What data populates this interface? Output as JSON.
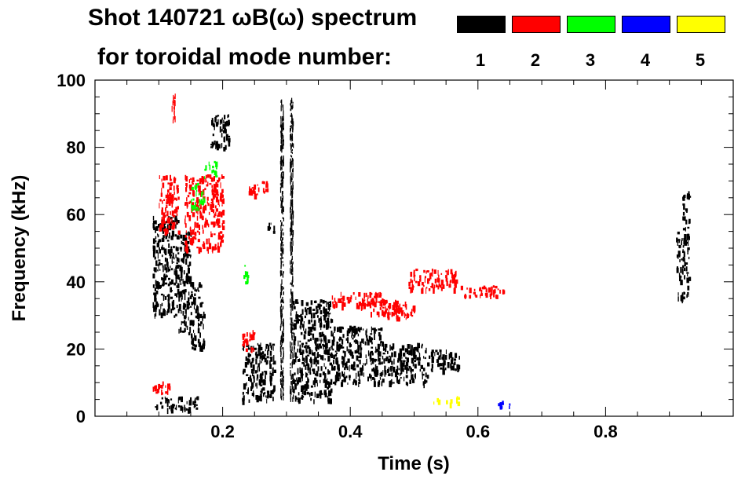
{
  "chart_data": {
    "type": "scatter",
    "title_line1": "Shot 140721 ωB(ω) spectrum",
    "title_line2": "for toroidal mode number:",
    "xlabel": "Time (s)",
    "ylabel": "Frequency (kHz)",
    "xlim": [
      0.0,
      1.0
    ],
    "ylim": [
      0,
      100
    ],
    "xticks": [
      0.2,
      0.4,
      0.6,
      0.8
    ],
    "xtick_labels": [
      "0.2",
      "0.4",
      "0.6",
      "0.8"
    ],
    "yticks": [
      0,
      20,
      40,
      60,
      80,
      100
    ],
    "ytick_labels": [
      "0",
      "20",
      "40",
      "60",
      "80",
      "100"
    ],
    "legend": [
      {
        "label": "1",
        "color": "#000000"
      },
      {
        "label": "2",
        "color": "#ff0000"
      },
      {
        "label": "3",
        "color": "#00ff00"
      },
      {
        "label": "4",
        "color": "#0000ff"
      },
      {
        "label": "5",
        "color": "#ffff00"
      }
    ],
    "series": [
      {
        "mode": "1",
        "color": "#000000",
        "regions": [
          {
            "t": [
              0.09,
              0.13
            ],
            "f": [
              30,
              60
            ]
          },
          {
            "t": [
              0.13,
              0.15
            ],
            "f": [
              25,
              55
            ]
          },
          {
            "t": [
              0.09,
              0.16
            ],
            "f": [
              2,
              6
            ]
          },
          {
            "t": [
              0.15,
              0.17
            ],
            "f": [
              20,
              40
            ]
          },
          {
            "t": [
              0.18,
              0.21
            ],
            "f": [
              80,
              90
            ]
          },
          {
            "t": [
              0.23,
              0.28
            ],
            "f": [
              5,
              22
            ]
          },
          {
            "t": [
              0.27,
              0.28
            ],
            "f": [
              55,
              58
            ]
          },
          {
            "t": [
              0.31,
              0.37
            ],
            "f": [
              5,
              35
            ]
          },
          {
            "t": [
              0.37,
              0.45
            ],
            "f": [
              10,
              27
            ]
          },
          {
            "t": [
              0.45,
              0.52
            ],
            "f": [
              10,
              22
            ]
          },
          {
            "t": [
              0.52,
              0.57
            ],
            "f": [
              14,
              20
            ]
          },
          {
            "t": [
              0.91,
              0.93
            ],
            "f": [
              35,
              55
            ]
          },
          {
            "t": [
              0.92,
              0.93
            ],
            "f": [
              55,
              67
            ]
          },
          {
            "t": [
              0.29,
              0.295
            ],
            "f": [
              5,
              95
            ]
          },
          {
            "t": [
              0.305,
              0.31
            ],
            "f": [
              5,
              95
            ]
          }
        ]
      },
      {
        "mode": "2",
        "color": "#ff0000",
        "regions": [
          {
            "t": [
              0.1,
              0.13
            ],
            "f": [
              55,
              72
            ]
          },
          {
            "t": [
              0.12,
              0.125
            ],
            "f": [
              88,
              96
            ]
          },
          {
            "t": [
              0.14,
              0.2
            ],
            "f": [
              50,
              72
            ]
          },
          {
            "t": [
              0.09,
              0.12
            ],
            "f": [
              7,
              11
            ]
          },
          {
            "t": [
              0.24,
              0.27
            ],
            "f": [
              66,
              70
            ]
          },
          {
            "t": [
              0.23,
              0.25
            ],
            "f": [
              20,
              26
            ]
          },
          {
            "t": [
              0.37,
              0.45
            ],
            "f": [
              33,
              37
            ]
          },
          {
            "t": [
              0.45,
              0.5
            ],
            "f": [
              29,
              33
            ]
          },
          {
            "t": [
              0.49,
              0.57
            ],
            "f": [
              38,
              44
            ]
          },
          {
            "t": [
              0.57,
              0.64
            ],
            "f": [
              36,
              39
            ]
          },
          {
            "t": [
              0.42,
              0.49
            ],
            "f": [
              31,
              35
            ]
          }
        ]
      },
      {
        "mode": "3",
        "color": "#00ff00",
        "regions": [
          {
            "t": [
              0.15,
              0.17
            ],
            "f": [
              62,
              70
            ]
          },
          {
            "t": [
              0.17,
              0.19
            ],
            "f": [
              71,
              76
            ]
          },
          {
            "t": [
              0.23,
              0.24
            ],
            "f": [
              40,
              45
            ]
          }
        ]
      },
      {
        "mode": "4",
        "color": "#0000ff",
        "regions": [
          {
            "t": [
              0.63,
              0.65
            ],
            "f": [
              3,
              5
            ]
          }
        ]
      },
      {
        "mode": "5",
        "color": "#ffff00",
        "regions": [
          {
            "t": [
              0.53,
              0.57
            ],
            "f": [
              4,
              6
            ]
          }
        ]
      }
    ]
  }
}
